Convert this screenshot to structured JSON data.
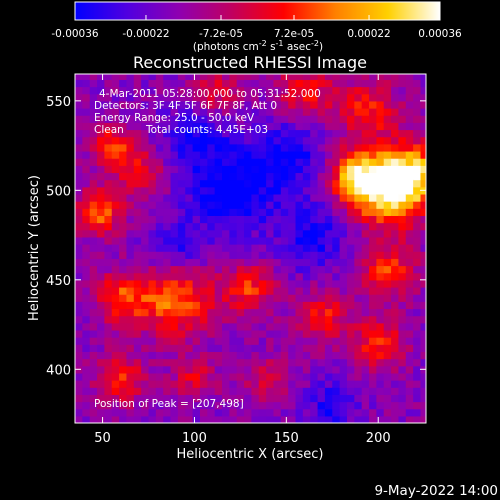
{
  "colorbar": {
    "tick_labels": [
      "-0.00036",
      "-0.00022",
      "-7.2e-05",
      "7.2e-05",
      "0.00022",
      "0.00036"
    ],
    "tick_values": [
      -0.00036,
      -0.00022,
      -7.2e-05,
      7.2e-05,
      0.00022,
      0.00036
    ],
    "range": [
      -0.00036,
      0.00036
    ],
    "unit_parts": {
      "a": "(photons cm",
      "b": "-2",
      "c": " s",
      "d": "-1",
      "e": " asec",
      "f": "-2",
      "g": ")"
    },
    "colors": [
      "#0000ff",
      "#5000e0",
      "#8f00b0",
      "#c00060",
      "#ff0000",
      "#ff8000",
      "#ffd000",
      "#ffffff"
    ]
  },
  "annotations": {
    "time_range": "4-Mar-2011 05:28:00.000 to 05:31:52.000",
    "detectors": "Detectors: 3F 4F 5F 6F 7F 8F, Att 0",
    "energy_range": "Energy Range: 25.0 - 50.0 keV",
    "algorithm": "Clean",
    "counts": "Total counts: 4.45E+03",
    "peak": "Position of Peak = [207,498]"
  },
  "date_stamp": "9-May-2022 14:00",
  "chart_data": {
    "type": "heatmap",
    "title": "Reconstructed RHESSI Image",
    "xlabel": "Heliocentric X (arcsec)",
    "ylabel": "Heliocentric Y (arcsec)",
    "xlim": [
      35,
      226
    ],
    "ylim": [
      370,
      565
    ],
    "x_ticks": [
      50,
      100,
      150,
      200
    ],
    "y_ticks": [
      400,
      450,
      500,
      550
    ],
    "x_tick_labels": [
      "50",
      "100",
      "150",
      "200"
    ],
    "y_tick_labels": [
      "400",
      "450",
      "500",
      "550"
    ],
    "grid": false,
    "colormap": "blue-purple-red-yellow-white",
    "peak_position": [
      207,
      498
    ],
    "sources": [
      {
        "x": 205,
        "y": 500,
        "sigma": 14,
        "amp": 1.0
      },
      {
        "x": 188,
        "y": 508,
        "sigma": 10,
        "amp": 0.85
      },
      {
        "x": 220,
        "y": 510,
        "sigma": 12,
        "amp": 0.8
      },
      {
        "x": 55,
        "y": 525,
        "sigma": 8,
        "amp": 0.6
      },
      {
        "x": 48,
        "y": 488,
        "sigma": 9,
        "amp": 0.65
      },
      {
        "x": 70,
        "y": 510,
        "sigma": 9,
        "amp": 0.5
      },
      {
        "x": 90,
        "y": 438,
        "sigma": 14,
        "amp": 0.7
      },
      {
        "x": 60,
        "y": 440,
        "sigma": 10,
        "amp": 0.6
      },
      {
        "x": 130,
        "y": 445,
        "sigma": 10,
        "amp": 0.55
      },
      {
        "x": 205,
        "y": 455,
        "sigma": 11,
        "amp": 0.55
      },
      {
        "x": 170,
        "y": 430,
        "sigma": 10,
        "amp": 0.5
      },
      {
        "x": 200,
        "y": 415,
        "sigma": 10,
        "amp": 0.55
      },
      {
        "x": 60,
        "y": 395,
        "sigma": 10,
        "amp": 0.5
      },
      {
        "x": 100,
        "y": 395,
        "sigma": 8,
        "amp": 0.4
      },
      {
        "x": 160,
        "y": 555,
        "sigma": 12,
        "amp": 0.45
      },
      {
        "x": 195,
        "y": 545,
        "sigma": 12,
        "amp": 0.5
      },
      {
        "x": 110,
        "y": 555,
        "sigma": 10,
        "amp": 0.4
      },
      {
        "x": 140,
        "y": 395,
        "sigma": 9,
        "amp": 0.35
      },
      {
        "x": 120,
        "y": 500,
        "sigma": 16,
        "amp": -0.55
      },
      {
        "x": 150,
        "y": 520,
        "sigma": 14,
        "amp": -0.45
      },
      {
        "x": 100,
        "y": 530,
        "sigma": 12,
        "amp": -0.4
      },
      {
        "x": 165,
        "y": 475,
        "sigma": 14,
        "amp": -0.4
      },
      {
        "x": 90,
        "y": 470,
        "sigma": 10,
        "amp": -0.35
      },
      {
        "x": 175,
        "y": 380,
        "sigma": 10,
        "amp": -0.35
      }
    ]
  }
}
